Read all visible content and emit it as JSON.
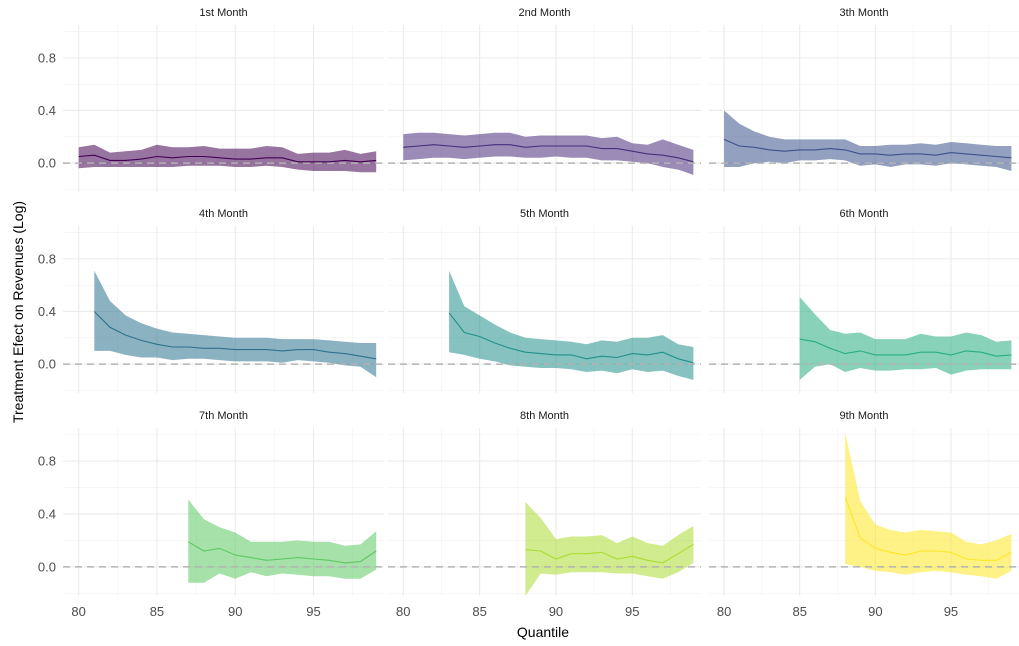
{
  "chart_data": {
    "type": "line",
    "title": "",
    "xlabel": "Quantile",
    "ylabel": "Treatment Efect on Revenues (Log)",
    "xlim": [
      79,
      99.5
    ],
    "ylim": [
      -0.22,
      1.05
    ],
    "x_ticks": [
      80,
      85,
      90,
      95
    ],
    "x_tick_labels": [
      "80",
      "85",
      "90",
      "95"
    ],
    "y_ticks": [
      0.0,
      0.4,
      0.8
    ],
    "y_tick_labels": [
      "0.0",
      "0.4",
      "0.8"
    ],
    "grid": true,
    "reference_line": 0,
    "legend": "none",
    "facets": [
      {
        "label": "1st Month",
        "color": "#440154",
        "x": [
          80,
          81,
          82,
          83,
          84,
          85,
          86,
          87,
          88,
          89,
          90,
          91,
          92,
          93,
          94,
          95,
          96,
          97,
          98,
          99
        ],
        "estimate": [
          0.05,
          0.06,
          0.02,
          0.02,
          0.03,
          0.05,
          0.04,
          0.05,
          0.05,
          0.04,
          0.03,
          0.03,
          0.04,
          0.04,
          0.01,
          0.01,
          0.01,
          0.02,
          0.01,
          0.02
        ],
        "lower": [
          -0.04,
          -0.03,
          -0.03,
          -0.03,
          -0.03,
          -0.03,
          -0.03,
          -0.02,
          -0.02,
          -0.02,
          -0.03,
          -0.03,
          -0.02,
          -0.03,
          -0.05,
          -0.06,
          -0.06,
          -0.06,
          -0.07,
          -0.07
        ],
        "upper": [
          0.12,
          0.14,
          0.08,
          0.09,
          0.1,
          0.14,
          0.12,
          0.12,
          0.13,
          0.11,
          0.11,
          0.11,
          0.13,
          0.12,
          0.07,
          0.08,
          0.08,
          0.1,
          0.07,
          0.09
        ]
      },
      {
        "label": "2nd Month",
        "color": "#472D7B",
        "x": [
          80,
          81,
          82,
          83,
          84,
          85,
          86,
          87,
          88,
          89,
          90,
          91,
          92,
          93,
          94,
          95,
          96,
          97,
          98,
          99
        ],
        "estimate": [
          0.12,
          0.13,
          0.14,
          0.13,
          0.12,
          0.13,
          0.14,
          0.14,
          0.12,
          0.13,
          0.13,
          0.13,
          0.13,
          0.11,
          0.11,
          0.09,
          0.07,
          0.06,
          0.04,
          0.01
        ],
        "lower": [
          0.02,
          0.03,
          0.04,
          0.04,
          0.03,
          0.04,
          0.05,
          0.05,
          0.04,
          0.04,
          0.05,
          0.04,
          0.04,
          0.02,
          0.02,
          0.01,
          0.0,
          -0.03,
          -0.05,
          -0.09
        ],
        "upper": [
          0.22,
          0.23,
          0.23,
          0.22,
          0.21,
          0.22,
          0.23,
          0.23,
          0.2,
          0.21,
          0.21,
          0.21,
          0.21,
          0.19,
          0.2,
          0.15,
          0.14,
          0.18,
          0.14,
          0.1
        ]
      },
      {
        "label": "3th Month",
        "color": "#3B528B",
        "x": [
          80,
          81,
          82,
          83,
          84,
          85,
          86,
          87,
          88,
          89,
          90,
          91,
          92,
          93,
          94,
          95,
          96,
          97,
          98,
          99
        ],
        "estimate": [
          0.18,
          0.13,
          0.12,
          0.1,
          0.09,
          0.1,
          0.1,
          0.11,
          0.1,
          0.07,
          0.07,
          0.06,
          0.07,
          0.07,
          0.06,
          0.08,
          0.07,
          0.06,
          0.05,
          0.04
        ],
        "lower": [
          -0.03,
          -0.03,
          0.0,
          0.01,
          0.0,
          0.02,
          0.02,
          0.03,
          0.02,
          -0.02,
          -0.01,
          -0.03,
          -0.01,
          -0.01,
          -0.02,
          0.0,
          -0.01,
          -0.02,
          -0.03,
          -0.06
        ],
        "upper": [
          0.4,
          0.3,
          0.24,
          0.2,
          0.18,
          0.18,
          0.18,
          0.18,
          0.18,
          0.13,
          0.13,
          0.14,
          0.14,
          0.15,
          0.14,
          0.16,
          0.15,
          0.14,
          0.13,
          0.13
        ]
      },
      {
        "label": "4th Month",
        "color": "#2C728E",
        "x": [
          81,
          82,
          83,
          84,
          85,
          86,
          87,
          88,
          89,
          90,
          91,
          92,
          93,
          94,
          95,
          96,
          97,
          98,
          99
        ],
        "estimate": [
          0.4,
          0.28,
          0.22,
          0.18,
          0.15,
          0.13,
          0.13,
          0.12,
          0.12,
          0.11,
          0.11,
          0.11,
          0.1,
          0.11,
          0.11,
          0.09,
          0.08,
          0.06,
          0.04
        ],
        "lower": [
          0.1,
          0.1,
          0.07,
          0.05,
          0.05,
          0.03,
          0.04,
          0.04,
          0.03,
          0.02,
          0.02,
          0.02,
          0.01,
          0.03,
          0.02,
          0.01,
          -0.01,
          -0.02,
          -0.1
        ],
        "upper": [
          0.71,
          0.48,
          0.37,
          0.31,
          0.27,
          0.24,
          0.23,
          0.22,
          0.21,
          0.2,
          0.2,
          0.2,
          0.19,
          0.19,
          0.19,
          0.18,
          0.17,
          0.16,
          0.16
        ]
      },
      {
        "label": "5th Month",
        "color": "#21908C",
        "x": [
          83,
          84,
          85,
          86,
          87,
          88,
          89,
          90,
          91,
          92,
          93,
          94,
          95,
          96,
          97,
          98,
          99
        ],
        "estimate": [
          0.39,
          0.24,
          0.21,
          0.16,
          0.12,
          0.09,
          0.08,
          0.07,
          0.07,
          0.04,
          0.06,
          0.05,
          0.08,
          0.07,
          0.09,
          0.04,
          0.01
        ],
        "lower": [
          0.09,
          0.07,
          0.04,
          0.02,
          -0.01,
          -0.02,
          -0.03,
          -0.03,
          -0.04,
          -0.06,
          -0.05,
          -0.07,
          -0.04,
          -0.06,
          -0.05,
          -0.09,
          -0.12
        ],
        "upper": [
          0.71,
          0.44,
          0.37,
          0.3,
          0.24,
          0.2,
          0.19,
          0.18,
          0.17,
          0.15,
          0.18,
          0.17,
          0.2,
          0.2,
          0.22,
          0.15,
          0.13
        ]
      },
      {
        "label": "6th Month",
        "color": "#27AD81",
        "x": [
          85,
          86,
          87,
          88,
          89,
          90,
          91,
          92,
          93,
          94,
          95,
          96,
          97,
          98,
          99
        ],
        "estimate": [
          0.19,
          0.17,
          0.12,
          0.08,
          0.1,
          0.07,
          0.07,
          0.07,
          0.09,
          0.09,
          0.07,
          0.1,
          0.09,
          0.06,
          0.07
        ],
        "lower": [
          -0.12,
          -0.02,
          0.0,
          -0.06,
          -0.03,
          -0.05,
          -0.05,
          -0.04,
          -0.04,
          -0.03,
          -0.08,
          -0.05,
          -0.04,
          -0.04,
          -0.04
        ],
        "upper": [
          0.51,
          0.38,
          0.26,
          0.23,
          0.24,
          0.19,
          0.19,
          0.19,
          0.23,
          0.21,
          0.21,
          0.24,
          0.22,
          0.17,
          0.18
        ]
      },
      {
        "label": "7th Month",
        "color": "#5DC863",
        "x": [
          87,
          88,
          89,
          90,
          91,
          92,
          93,
          94,
          95,
          96,
          97,
          98,
          99
        ],
        "estimate": [
          0.19,
          0.12,
          0.14,
          0.09,
          0.07,
          0.05,
          0.06,
          0.07,
          0.06,
          0.05,
          0.03,
          0.04,
          0.12
        ],
        "lower": [
          -0.12,
          -0.12,
          -0.05,
          -0.09,
          -0.04,
          -0.07,
          -0.05,
          -0.06,
          -0.07,
          -0.07,
          -0.09,
          -0.09,
          -0.02
        ],
        "upper": [
          0.51,
          0.36,
          0.3,
          0.26,
          0.19,
          0.19,
          0.19,
          0.2,
          0.19,
          0.19,
          0.16,
          0.17,
          0.27
        ]
      },
      {
        "label": "8th Month",
        "color": "#AADC32",
        "x": [
          88,
          89,
          90,
          91,
          92,
          93,
          94,
          95,
          96,
          97,
          98,
          99
        ],
        "estimate": [
          0.13,
          0.12,
          0.06,
          0.1,
          0.1,
          0.11,
          0.06,
          0.08,
          0.05,
          0.03,
          0.1,
          0.17
        ],
        "lower": [
          -0.22,
          -0.05,
          -0.06,
          -0.04,
          -0.04,
          -0.04,
          -0.05,
          -0.05,
          -0.07,
          -0.09,
          -0.04,
          0.03
        ],
        "upper": [
          0.49,
          0.37,
          0.21,
          0.23,
          0.23,
          0.24,
          0.18,
          0.23,
          0.18,
          0.16,
          0.24,
          0.31
        ]
      },
      {
        "label": "9th Month",
        "color": "#FDE725",
        "x": [
          88,
          89,
          90,
          91,
          92,
          93,
          94,
          95,
          96,
          97,
          98,
          99
        ],
        "estimate": [
          0.53,
          0.22,
          0.14,
          0.11,
          0.09,
          0.12,
          0.12,
          0.11,
          0.06,
          0.05,
          0.05,
          0.11
        ],
        "lower": [
          0.02,
          0.0,
          -0.03,
          -0.04,
          -0.06,
          -0.04,
          -0.03,
          -0.04,
          -0.06,
          -0.07,
          -0.09,
          -0.03
        ],
        "upper": [
          1.02,
          0.5,
          0.32,
          0.28,
          0.26,
          0.28,
          0.27,
          0.26,
          0.19,
          0.17,
          0.2,
          0.25
        ]
      }
    ]
  }
}
